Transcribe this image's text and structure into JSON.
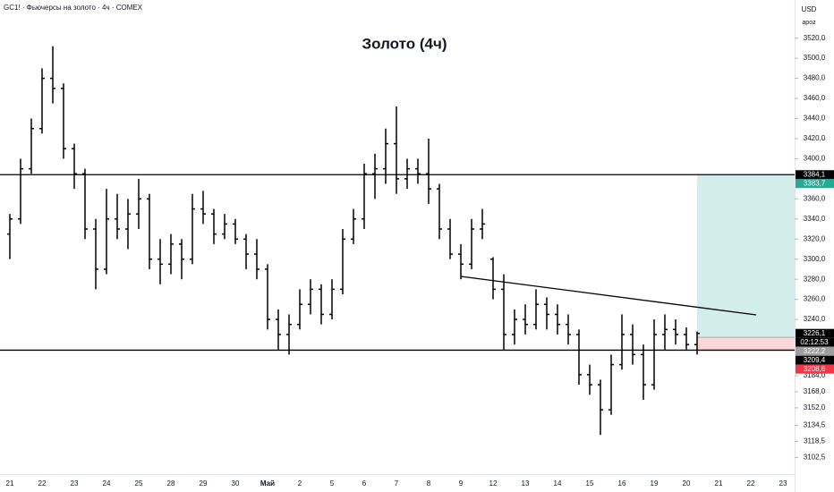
{
  "chart_data": {
    "type": "ohlc",
    "header": "GC1! · Фьючерсы на золото · 4ч · COMEX",
    "title": "Золото (4ч)",
    "currency": "USD",
    "scale_mode": "apoz",
    "color": "#000000",
    "categories": [
      "21",
      null,
      null,
      "22",
      null,
      null,
      "23",
      null,
      null,
      "24",
      null,
      null,
      "25",
      null,
      null,
      "28",
      null,
      null,
      "29",
      null,
      null,
      "30",
      null,
      null,
      "Май",
      null,
      null,
      "2",
      null,
      null,
      "5",
      null,
      null,
      "6",
      null,
      null,
      "7",
      null,
      null,
      "8",
      null,
      null,
      "9",
      null,
      null,
      "12",
      null,
      null,
      "13",
      null,
      null,
      "14",
      null,
      null,
      "15",
      null,
      null,
      "16",
      null,
      null,
      "19",
      null,
      null,
      "20",
      null,
      null,
      "21",
      null,
      null,
      "22",
      null,
      null,
      "23"
    ],
    "open": [
      3325,
      3340,
      3390,
      3430,
      3480,
      3470,
      3410,
      3385,
      3330,
      3290,
      3340,
      3330,
      3345,
      3360,
      3300,
      3295,
      3315,
      3300,
      3350,
      3345,
      3325,
      3335,
      3320,
      3305,
      3290,
      3240,
      3225,
      3235,
      3255,
      3270,
      3245,
      3270,
      3320,
      3340,
      3385,
      3390,
      3415,
      3380,
      3390,
      3385,
      3370,
      3330,
      3305,
      3295,
      3330,
      3300,
      3270,
      3225,
      3240,
      3235,
      3255,
      3245,
      3235,
      3225,
      3185,
      3175,
      3150,
      3195,
      3225,
      3205,
      3175,
      3225,
      3230,
      3225,
      3215,
      null,
      null,
      null,
      null,
      null,
      null,
      null,
      null
    ],
    "high": [
      3345,
      3400,
      3440,
      3490,
      3512,
      3475,
      3415,
      3390,
      3340,
      3370,
      3365,
      3360,
      3380,
      3365,
      3320,
      3325,
      3320,
      3365,
      3368,
      3350,
      3345,
      3340,
      3325,
      3320,
      3295,
      3250,
      3245,
      3270,
      3280,
      3275,
      3280,
      3330,
      3350,
      3395,
      3405,
      3430,
      3452,
      3400,
      3400,
      3420,
      3375,
      3340,
      3315,
      3340,
      3350,
      3302,
      3285,
      3250,
      3255,
      3270,
      3262,
      3255,
      3245,
      3230,
      3195,
      3180,
      3205,
      3245,
      3235,
      3215,
      3240,
      3245,
      3240,
      3232,
      3228,
      null,
      null,
      null,
      null,
      null,
      null,
      null,
      null
    ],
    "low": [
      3300,
      3335,
      3385,
      3425,
      3455,
      3400,
      3370,
      3320,
      3270,
      3285,
      3320,
      3310,
      3330,
      3290,
      3275,
      3285,
      3280,
      3295,
      3335,
      3315,
      3320,
      3315,
      3290,
      3280,
      3230,
      3210,
      3205,
      3230,
      3245,
      3235,
      3240,
      3265,
      3315,
      3330,
      3360,
      3375,
      3365,
      3370,
      3375,
      3355,
      3320,
      3300,
      3280,
      3290,
      3320,
      3260,
      3210,
      3215,
      3225,
      3230,
      3230,
      3225,
      3215,
      3175,
      3165,
      3125,
      3145,
      3190,
      3195,
      3160,
      3170,
      3210,
      3215,
      3210,
      3205,
      null,
      null,
      null,
      null,
      null,
      null,
      null,
      null
    ],
    "close": [
      3340,
      3390,
      3430,
      3480,
      3470,
      3410,
      3385,
      3330,
      3290,
      3340,
      3330,
      3345,
      3360,
      3300,
      3295,
      3315,
      3300,
      3350,
      3345,
      3325,
      3335,
      3320,
      3305,
      3290,
      3240,
      3225,
      3235,
      3255,
      3270,
      3245,
      3270,
      3320,
      3340,
      3385,
      3390,
      3415,
      3380,
      3390,
      3385,
      3370,
      3330,
      3305,
      3295,
      3330,
      3335,
      3270,
      3225,
      3240,
      3235,
      3255,
      3245,
      3235,
      3225,
      3185,
      3175,
      3150,
      3195,
      3225,
      3205,
      3175,
      3225,
      3230,
      3225,
      3215,
      3226.1,
      null,
      null,
      null,
      null,
      null,
      null,
      null,
      null
    ],
    "ylim": [
      3086,
      3558
    ],
    "yticks": [
      {
        "value": 3520,
        "label": "3520,0"
      },
      {
        "value": 3500,
        "label": "3500,0"
      },
      {
        "value": 3480,
        "label": "3480,0"
      },
      {
        "value": 3460,
        "label": "3460,0"
      },
      {
        "value": 3440,
        "label": "3440,0"
      },
      {
        "value": 3420,
        "label": "3420,0"
      },
      {
        "value": 3400,
        "label": "3400,0"
      },
      {
        "value": 3360,
        "label": "3360,0"
      },
      {
        "value": 3340,
        "label": "3340,0"
      },
      {
        "value": 3320,
        "label": "3320,0"
      },
      {
        "value": 3300,
        "label": "3300,0"
      },
      {
        "value": 3280,
        "label": "3280,0"
      },
      {
        "value": 3260,
        "label": "3260,0"
      },
      {
        "value": 3240,
        "label": "3240,0"
      },
      {
        "value": 3184,
        "label": "3184,0"
      },
      {
        "value": 3168,
        "label": "3168,0"
      },
      {
        "value": 3152,
        "label": "3152,0"
      },
      {
        "value": 3134.5,
        "label": "3134,5"
      },
      {
        "value": 3118.5,
        "label": "3118,5"
      },
      {
        "value": 3102.5,
        "label": "3102,5"
      }
    ],
    "price_labels": [
      {
        "value": 3384.1,
        "label": "3384,1",
        "color": "#000000"
      },
      {
        "value": 3383.7,
        "label": "3383,7",
        "color": "#22ab94"
      },
      {
        "value": 3226.1,
        "label": "3226,1",
        "color": "#000000"
      },
      {
        "value": 3222.2,
        "label": "3222,2",
        "color": "#9e9e9e"
      },
      {
        "value": 3209.4,
        "label": "3209,4",
        "color": "#000000"
      },
      {
        "value": 3208.6,
        "label": "3208,6",
        "color": "#f23645"
      }
    ],
    "countdown": "02:12:53"
  }
}
